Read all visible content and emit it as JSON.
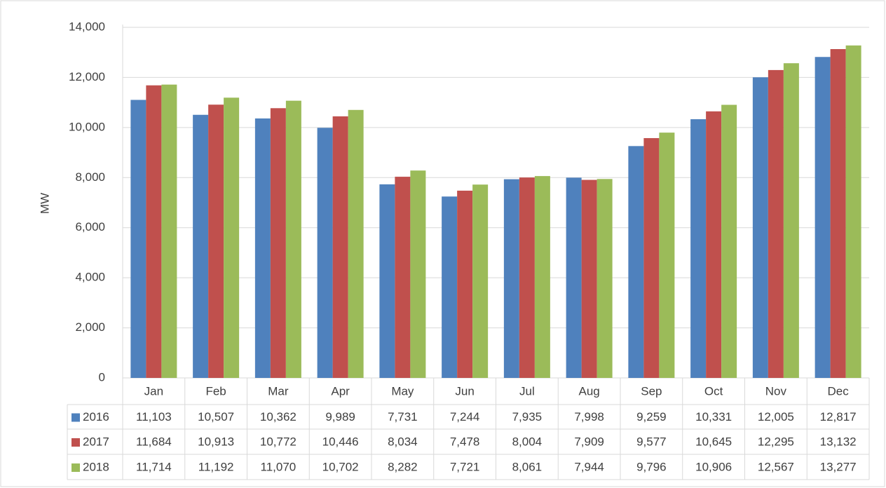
{
  "chart_data": {
    "type": "bar",
    "y_label": "MW",
    "categories": [
      "Jan",
      "Feb",
      "Mar",
      "Apr",
      "May",
      "Jun",
      "Jul",
      "Aug",
      "Sep",
      "Oct",
      "Nov",
      "Dec"
    ],
    "series": [
      {
        "name": "2016",
        "color": "#4f81bd",
        "values": [
          11103,
          10507,
          10362,
          9989,
          7731,
          7244,
          7935,
          7998,
          9259,
          10331,
          12005,
          12817
        ],
        "value_labels": [
          "11,103",
          "10,507",
          "10,362",
          "9,989",
          "7,731",
          "7,244",
          "7,935",
          "7,998",
          "9,259",
          "10,331",
          "12,005",
          "12,817"
        ]
      },
      {
        "name": "2017",
        "color": "#c0504d",
        "values": [
          11684,
          10913,
          10772,
          10446,
          8034,
          7478,
          8004,
          7909,
          9577,
          10645,
          12295,
          13132
        ],
        "value_labels": [
          "11,684",
          "10,913",
          "10,772",
          "10,446",
          "8,034",
          "7,478",
          "8,004",
          "7,909",
          "9,577",
          "10,645",
          "12,295",
          "13,132"
        ]
      },
      {
        "name": "2018",
        "color": "#9bbb59",
        "values": [
          11714,
          11192,
          11070,
          10702,
          8282,
          7721,
          8061,
          7944,
          9796,
          10906,
          12567,
          13277
        ],
        "value_labels": [
          "11,714",
          "11,192",
          "11,070",
          "10,702",
          "8,282",
          "7,721",
          "8,061",
          "7,944",
          "9,796",
          "10,906",
          "12,567",
          "13,277"
        ]
      }
    ],
    "ylim": [
      0,
      14000
    ],
    "yticks": [
      0,
      {
        "value": 2000,
        "label": "2,000"
      },
      {
        "value": 4000,
        "label": "4,000"
      },
      {
        "value": 6000,
        "label": "6,000"
      },
      {
        "value": 8000,
        "label": "8,000"
      },
      {
        "value": 10000,
        "label": "10,000"
      },
      {
        "value": 12000,
        "label": "12,000"
      },
      {
        "value": 14000,
        "label": "14,000"
      }
    ],
    "grid": true
  }
}
